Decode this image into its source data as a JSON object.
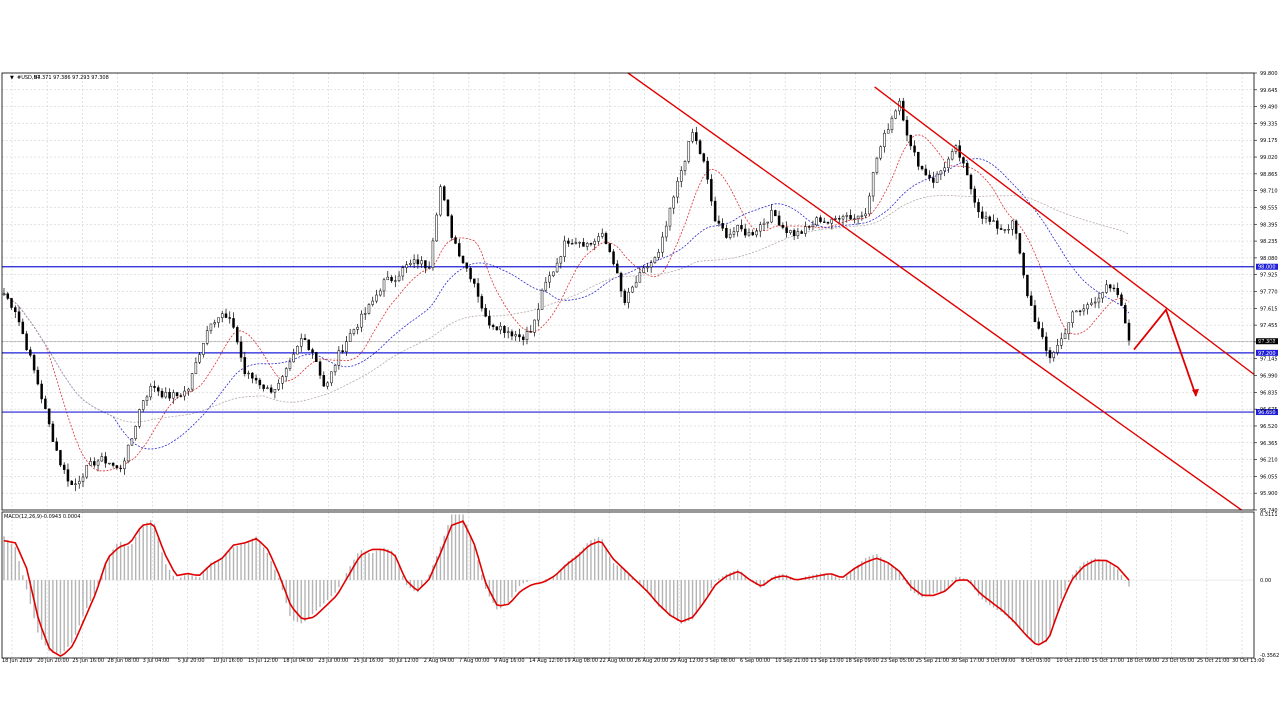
{
  "header": {
    "symbol": "#USD,H4",
    "ohlc": "97.371 97.386 97.293 97.308"
  },
  "macd_header": {
    "label": "MACD(12,26,9)",
    "values": "-0.0943 0.0004"
  },
  "colors": {
    "grid": "#c8c8c8",
    "candle": "#000000",
    "level": "#1f1fd8",
    "channel": "#e00000",
    "ma_fast": "#e03030",
    "ma_mid": "#2a2ad0",
    "ma_slow": "#b8a8a8",
    "macd_hist": "#b4b4b4",
    "macd_signal": "#e00000",
    "arrow": "#e00000"
  },
  "chart_data": [
    {
      "type": "candlestick",
      "title": "#USD,H4",
      "ylim": [
        95.74,
        99.8
      ],
      "y_ticks": [
        "99.800",
        "99.645",
        "99.490",
        "99.335",
        "99.175",
        "99.020",
        "98.865",
        "98.710",
        "98.555",
        "98.395",
        "98.235",
        "98.080",
        "97.925",
        "97.770",
        "97.615",
        "97.455",
        "97.300",
        "97.145",
        "96.990",
        "96.835",
        "96.675",
        "96.520",
        "96.365",
        "96.210",
        "96.055",
        "95.900",
        "95.740"
      ],
      "x_labels": [
        "18 Jun 2019",
        "20 Jun 20:00",
        "25 Jun 16:00",
        "28 Jun 08:00",
        "3 Jul 04:00",
        "5 Jul 20:00",
        "10 Jul 16:00",
        "15 Jul 12:00",
        "18 Jul 04:00",
        "23 Jul 00:00",
        "25 Jul 16:00",
        "30 Jul 12:00",
        "2 Aug 04:00",
        "7 Aug 00:00",
        "9 Aug 16:00",
        "14 Aug 12:00",
        "19 Aug 08:00",
        "22 Aug 00:00",
        "26 Aug 20:00",
        "29 Aug 12:00",
        "3 Sep 08:00",
        "6 Sep 00:00",
        "10 Sep 21:00",
        "13 Sep 13:00",
        "18 Sep 09:00",
        "23 Sep 05:00",
        "25 Sep 21:00",
        "30 Sep 17:00",
        "3 Oct 09:00",
        "8 Oct 05:00",
        "10 Oct 21:00",
        "15 Oct 17:00",
        "18 Oct 09:00",
        "23 Oct 05:00",
        "25 Oct 21:00",
        "30 Oct 13:00"
      ],
      "close_path": [
        97.75,
        97.6,
        97.25,
        96.9,
        96.5,
        96.15,
        95.95,
        96.1,
        96.2,
        96.2,
        96.1,
        96.35,
        96.75,
        96.9,
        96.8,
        96.8,
        96.85,
        97.2,
        97.5,
        97.55,
        97.45,
        97.0,
        96.95,
        96.85,
        96.9,
        97.1,
        97.35,
        97.2,
        96.85,
        97.15,
        97.35,
        97.5,
        97.65,
        97.85,
        97.9,
        98.0,
        98.05,
        98.0,
        98.75,
        98.3,
        98.05,
        97.85,
        97.5,
        97.45,
        97.4,
        97.35,
        97.4,
        97.8,
        98.0,
        98.25,
        98.25,
        98.2,
        98.3,
        98.1,
        97.65,
        97.85,
        98.0,
        98.1,
        98.5,
        98.9,
        99.25,
        98.95,
        98.4,
        98.3,
        98.35,
        98.3,
        98.4,
        98.5,
        98.35,
        98.3,
        98.35,
        98.45,
        98.4,
        98.5,
        98.45,
        98.5,
        99.0,
        99.3,
        99.55,
        99.1,
        98.9,
        98.8,
        98.95,
        99.1,
        98.8,
        98.5,
        98.4,
        98.35,
        98.4,
        97.8,
        97.45,
        97.15,
        97.3,
        97.55,
        97.6,
        97.7,
        97.8,
        97.75,
        97.35
      ],
      "horizontal_levels": [
        98.0,
        97.2,
        96.65
      ],
      "level_labels": [
        "98.000",
        "97.200",
        "96.650"
      ],
      "price_marker": "97.308",
      "channel": "descending",
      "moving_averages": [
        "fast",
        "medium",
        "slow"
      ],
      "projection_arrow": "up then down"
    },
    {
      "type": "bar",
      "title": "MACD(12,26,9)",
      "ylim": [
        -0.3562,
        0.3111
      ],
      "y_ticks": [
        "0.3111",
        "0.00",
        "-0.3562"
      ],
      "histogram_path": [
        0.2,
        0.15,
        -0.05,
        -0.25,
        -0.33,
        -0.34,
        -0.28,
        -0.15,
        -0.05,
        0.1,
        0.18,
        0.15,
        0.25,
        0.28,
        0.08,
        0.0,
        0.03,
        0.01,
        0.08,
        0.1,
        0.15,
        0.17,
        0.2,
        0.12,
        0.0,
        -0.18,
        -0.2,
        -0.15,
        -0.1,
        -0.05,
        0.05,
        0.14,
        0.12,
        0.15,
        0.13,
        -0.02,
        -0.06,
        0.02,
        0.15,
        0.3,
        0.3,
        0.15,
        -0.05,
        -0.14,
        -0.1,
        -0.02,
        0.0,
        0.0,
        0.02,
        0.08,
        0.12,
        0.18,
        0.2,
        0.08,
        0.05,
        0.0,
        -0.05,
        -0.12,
        -0.16,
        -0.2,
        -0.18,
        -0.1,
        0.0,
        0.03,
        0.05,
        0.0,
        -0.04,
        0.02,
        0.03,
        0.0,
        0.02,
        0.03,
        0.03,
        0.0,
        0.05,
        0.1,
        0.12,
        0.08,
        0.04,
        -0.05,
        -0.08,
        -0.06,
        -0.05,
        0.02,
        0.0,
        -0.08,
        -0.12,
        -0.15,
        -0.2,
        -0.25,
        -0.3,
        -0.28,
        -0.1,
        0.02,
        0.08,
        0.1,
        0.09,
        0.05,
        -0.03
      ],
      "signal_path": [
        0.18,
        0.17,
        0.05,
        -0.18,
        -0.32,
        -0.35,
        -0.3,
        -0.18,
        -0.06,
        0.1,
        0.15,
        0.17,
        0.25,
        0.26,
        0.12,
        0.02,
        0.03,
        0.02,
        0.07,
        0.1,
        0.16,
        0.17,
        0.19,
        0.14,
        0.02,
        -0.12,
        -0.18,
        -0.17,
        -0.12,
        -0.07,
        0.02,
        0.11,
        0.14,
        0.14,
        0.12,
        0.0,
        -0.05,
        0.0,
        0.12,
        0.25,
        0.27,
        0.16,
        -0.02,
        -0.12,
        -0.11,
        -0.05,
        -0.02,
        -0.01,
        0.02,
        0.07,
        0.11,
        0.16,
        0.18,
        0.1,
        0.05,
        0.0,
        -0.05,
        -0.11,
        -0.16,
        -0.19,
        -0.17,
        -0.1,
        -0.02,
        0.02,
        0.04,
        0.0,
        -0.03,
        0.01,
        0.02,
        0.0,
        0.01,
        0.02,
        0.03,
        0.01,
        0.05,
        0.08,
        0.1,
        0.08,
        0.04,
        -0.03,
        -0.07,
        -0.07,
        -0.05,
        0.0,
        0.0,
        -0.06,
        -0.1,
        -0.14,
        -0.19,
        -0.25,
        -0.3,
        -0.27,
        -0.12,
        0.0,
        0.06,
        0.09,
        0.09,
        0.06,
        0.0
      ]
    }
  ]
}
